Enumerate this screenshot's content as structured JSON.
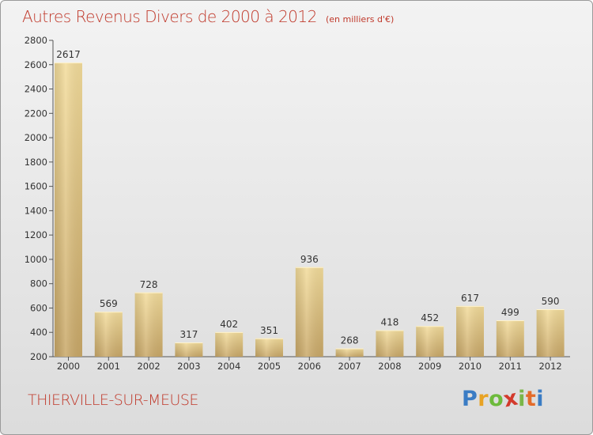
{
  "title": "Autres Revenus Divers de 2000 à 2012",
  "subtitle": "(en milliers d'€)",
  "commune": "THIERVILLE-SUR-MEUSE",
  "logo": {
    "letters": [
      "P",
      "r",
      "o",
      "x",
      "i",
      "t",
      "i"
    ],
    "colors": [
      "#3a7cc4",
      "#e8a324",
      "#6dba3c",
      "#d33a2c",
      "#7ab648",
      "#e36b2a",
      "#3a7cc4"
    ]
  },
  "chart_data": {
    "type": "bar",
    "categories": [
      "2000",
      "2001",
      "2002",
      "2003",
      "2004",
      "2005",
      "2006",
      "2007",
      "2008",
      "2009",
      "2010",
      "2011",
      "2012"
    ],
    "values": [
      2617,
      569,
      728,
      317,
      402,
      351,
      936,
      268,
      418,
      452,
      617,
      499,
      590
    ],
    "value_labels": [
      "2617",
      "569",
      "728",
      "317",
      "402",
      "351",
      "936",
      "268",
      "418",
      "452",
      "617",
      "499",
      "590"
    ],
    "ylim": [
      200,
      2800
    ],
    "yticks": [
      "200",
      "400",
      "600",
      "800",
      "1000",
      "1200",
      "1400",
      "1600",
      "1800",
      "2000",
      "2200",
      "2400",
      "2600",
      "2800"
    ],
    "grid": false,
    "bar_color": "#e6c884"
  }
}
